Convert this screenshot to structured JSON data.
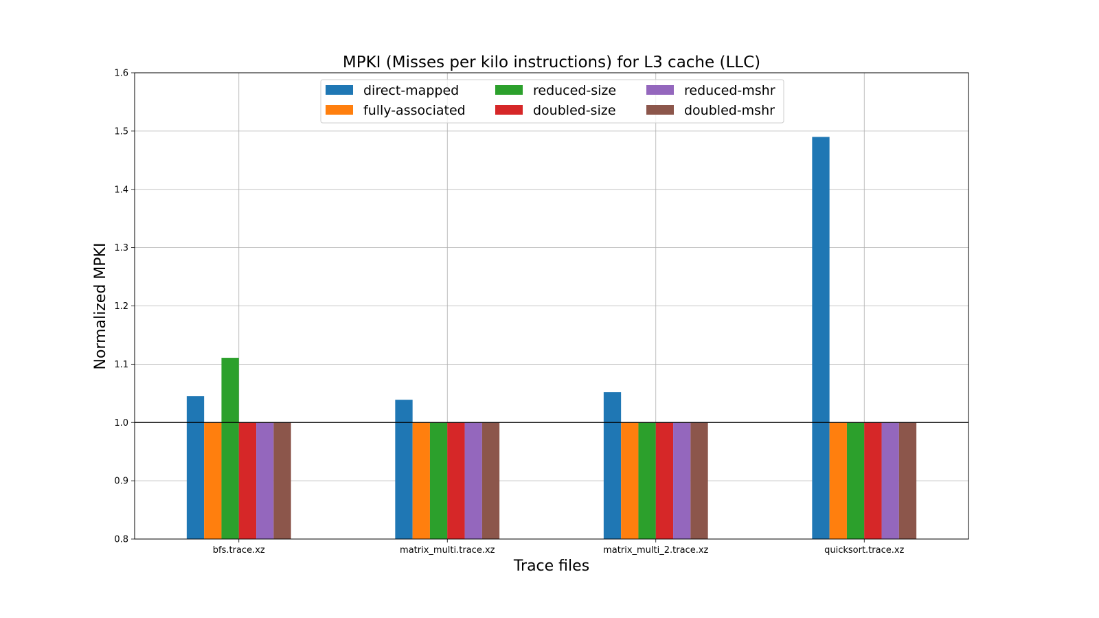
{
  "chart_data": {
    "type": "bar",
    "title": "MPKI (Misses per kilo instructions) for L3 cache (LLC)",
    "xlabel": "Trace files",
    "ylabel": "Normalized MPKI",
    "ylim": [
      0.8,
      1.6
    ],
    "yticks": [
      "0.8",
      "0.9",
      "1.0",
      "1.1",
      "1.2",
      "1.3",
      "1.4",
      "1.5",
      "1.6"
    ],
    "reference_line": 1.0,
    "grid": true,
    "legend_position": "upper center",
    "categories": [
      "bfs.trace.xz",
      "matrix_multi.trace.xz",
      "matrix_multi_2.trace.xz",
      "quicksort.trace.xz"
    ],
    "series": [
      {
        "name": "direct-mapped",
        "color": "#1f77b4",
        "values": [
          1.045,
          1.039,
          1.052,
          1.49
        ]
      },
      {
        "name": "fully-associated",
        "color": "#ff7f0e",
        "values": [
          1.0,
          1.0,
          1.0,
          1.0
        ]
      },
      {
        "name": "reduced-size",
        "color": "#2ca02c",
        "values": [
          1.111,
          1.0,
          1.0,
          1.0
        ]
      },
      {
        "name": "doubled-size",
        "color": "#d62728",
        "values": [
          1.0,
          1.0,
          1.0,
          1.0
        ]
      },
      {
        "name": "reduced-mshr",
        "color": "#9467bd",
        "values": [
          1.0,
          1.0,
          1.0,
          1.0
        ]
      },
      {
        "name": "doubled-mshr",
        "color": "#8c564b",
        "values": [
          1.0,
          1.0,
          1.0,
          1.0
        ]
      }
    ]
  }
}
